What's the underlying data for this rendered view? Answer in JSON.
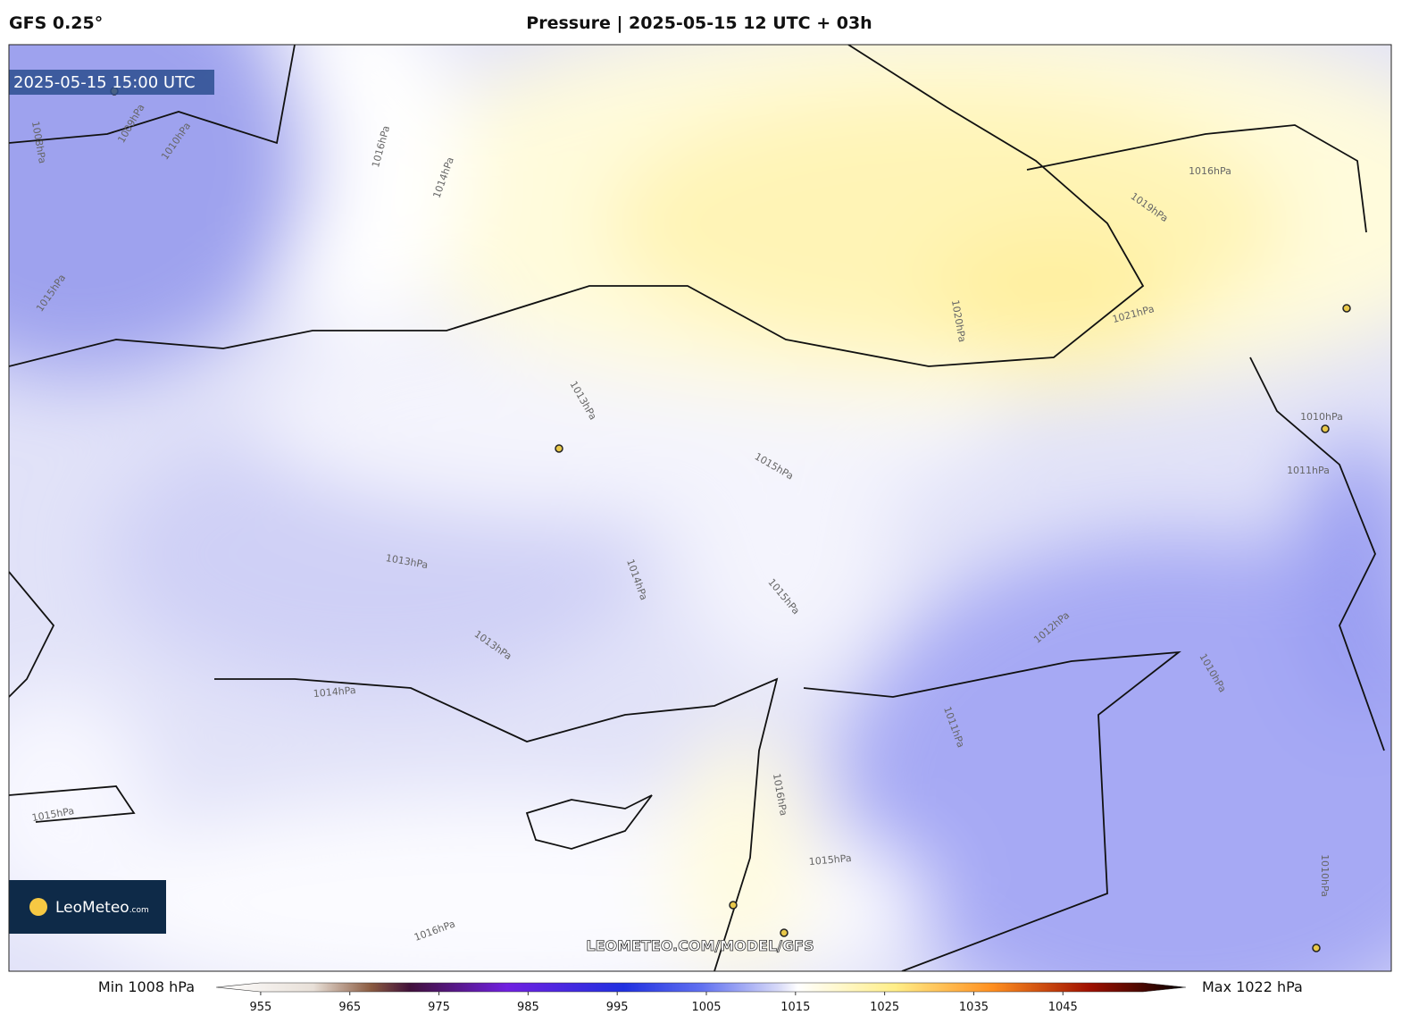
{
  "header": {
    "model": "GFS 0.25°",
    "title": "Pressure | 2025-05-15 12 UTC + 03h"
  },
  "map": {
    "valid_time": "2025-05-15 15:00 UTC",
    "logo": "LeoMeteo",
    "logo_suffix": ".com",
    "watermark": "LEOMETEO.COM/MODEL/GFS",
    "contour_labels": [
      "1008hPa",
      "1009hPa",
      "1010hPa",
      "1015hPa",
      "1016hPa",
      "1014hPa",
      "1013hPa",
      "1015hPa",
      "1013hPa",
      "1014hPa",
      "1013hPa",
      "1014hPa",
      "1015hPa",
      "1020hPa",
      "1021hPa",
      "1019hPa",
      "1016hPa",
      "1011hPa",
      "1012hPa",
      "1010hPa",
      "1010hPa",
      "1011hPa",
      "1016hPa",
      "1015hPa",
      "1016hPa",
      "1010hPa",
      "1015hPa"
    ]
  },
  "colorbar": {
    "min_label": "Min 1008 hPa",
    "max_label": "Max 1022 hPa",
    "range": [
      950,
      1060
    ],
    "ticks": [
      955,
      965,
      975,
      985,
      995,
      1005,
      1015,
      1025,
      1035,
      1045
    ]
  }
}
